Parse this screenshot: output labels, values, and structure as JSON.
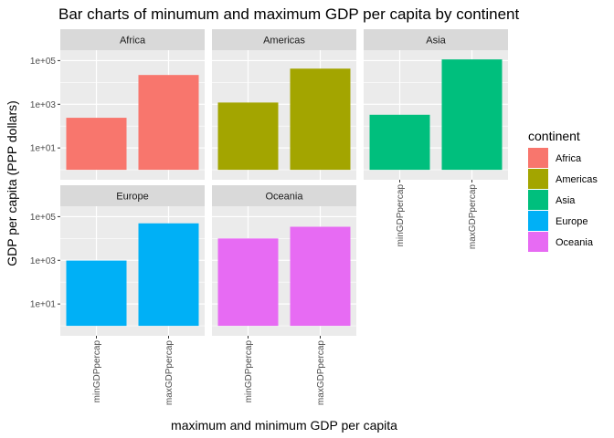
{
  "chart_data": {
    "type": "bar",
    "title": "Bar charts of minumum and maximum GDP per capita by continent",
    "xlabel": "maximum and minimum GDP per capita",
    "ylabel": "GDP per capita (PPP dollars)",
    "y_scale": "log10",
    "ylim": [
      0.35,
      300000
    ],
    "y_ticks": [
      10,
      1000,
      100000
    ],
    "y_tick_labels": [
      "1e+01",
      "1e+03",
      "1e+05"
    ],
    "categories": [
      "minGDPpercap",
      "maxGDPpercap"
    ],
    "grid": true,
    "legend": {
      "title": "continent",
      "position": "right",
      "entries": [
        "Africa",
        "Americas",
        "Asia",
        "Europe",
        "Oceania"
      ]
    },
    "panels": [
      {
        "name": "Africa",
        "color": "#F8766D",
        "values": [
          241.2,
          21951.2
        ]
      },
      {
        "name": "Americas",
        "color": "#A3A500",
        "values": [
          1201.6,
          42951.7
        ]
      },
      {
        "name": "Asia",
        "color": "#00BF7D",
        "values": [
          331.0,
          113523.1
        ]
      },
      {
        "name": "Europe",
        "color": "#00B0F6",
        "values": [
          973.5,
          49357.2
        ]
      },
      {
        "name": "Oceania",
        "color": "#E76BF3",
        "values": [
          10039.6,
          34435.4
        ]
      }
    ]
  }
}
